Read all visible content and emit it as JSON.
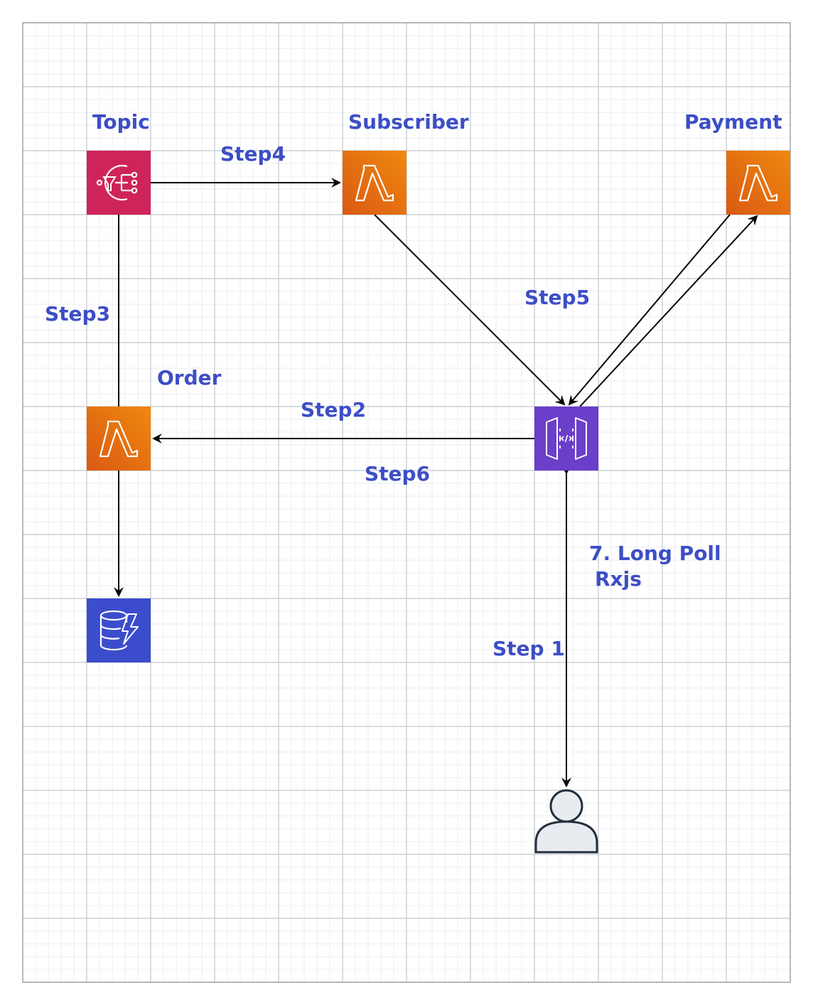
{
  "colors": {
    "text": "#3d4ec6",
    "grid_minor": "#ebedf0",
    "grid_major": "#c2c7ce",
    "border": "#8c939b",
    "sns": "#cf2459",
    "lambda_top": "#d95a13",
    "lambda_bottom": "#f0880f",
    "api_gateway": "#6b3fc9",
    "dynamodb": "#3b4dcc",
    "user_fill": "#e8ebef",
    "user_stroke": "#232f3e",
    "arrow": "#000000"
  },
  "nodes": {
    "topic": {
      "label": "Topic",
      "icon": "sns-topic-icon"
    },
    "subscriber": {
      "label": "Subscriber",
      "icon": "lambda-icon"
    },
    "payment": {
      "label": "Payment",
      "icon": "lambda-icon"
    },
    "order": {
      "label": "Order",
      "icon": "lambda-icon"
    },
    "api": {
      "label": "",
      "icon": "api-gateway-icon"
    },
    "db": {
      "label": "",
      "icon": "dynamodb-icon"
    },
    "user": {
      "label": "",
      "icon": "user-icon"
    }
  },
  "edges": {
    "step1": "Step 1",
    "step2": "Step2",
    "step3": "Step3",
    "step4": "Step4",
    "step5": "Step5",
    "step6": "Step6",
    "step7_line1": "7. Long Poll",
    "step7_line2": "Rxjs"
  }
}
